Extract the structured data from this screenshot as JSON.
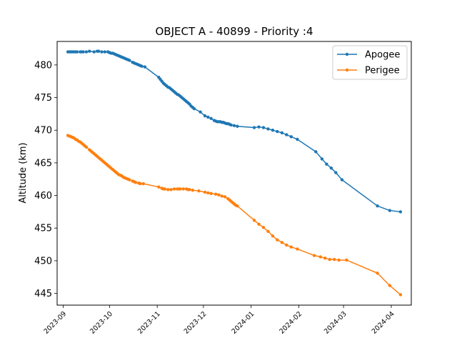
{
  "chart_data": {
    "type": "line",
    "title": "OBJECT A - 40899 - Priority :4",
    "xlabel": "",
    "ylabel": "Altitude (km)",
    "xlim": [
      "2023-08-28",
      "2024-04-14"
    ],
    "ylim": [
      443.2,
      483.6
    ],
    "x_ticks": [
      "2023-09",
      "2023-10",
      "2023-11",
      "2023-12",
      "2024-01",
      "2024-02",
      "2024-03",
      "2024-04"
    ],
    "y_ticks": [
      445,
      450,
      455,
      460,
      465,
      470,
      475,
      480
    ],
    "grid": false,
    "legend_position": "top-right",
    "series": [
      {
        "name": "Apogee",
        "color": "#1f77b4",
        "marker": "circle",
        "points": [
          [
            "2023-09-04",
            482.0
          ],
          [
            "2023-09-05",
            482.0
          ],
          [
            "2023-09-06",
            482.0
          ],
          [
            "2023-09-07",
            482.0
          ],
          [
            "2023-09-08",
            482.0
          ],
          [
            "2023-09-09",
            482.0
          ],
          [
            "2023-09-10",
            482.0
          ],
          [
            "2023-09-12",
            482.0
          ],
          [
            "2023-09-13",
            482.0
          ],
          [
            "2023-09-14",
            482.0
          ],
          [
            "2023-09-16",
            482.0
          ],
          [
            "2023-09-18",
            482.1
          ],
          [
            "2023-09-21",
            482.0
          ],
          [
            "2023-09-23",
            482.1
          ],
          [
            "2023-09-24",
            482.1
          ],
          [
            "2023-09-26",
            482.0
          ],
          [
            "2023-09-28",
            482.0
          ],
          [
            "2023-09-30",
            482.0
          ],
          [
            "2023-10-01",
            481.9
          ],
          [
            "2023-10-02",
            481.8
          ],
          [
            "2023-10-03",
            481.8
          ],
          [
            "2023-10-04",
            481.7
          ],
          [
            "2023-10-05",
            481.6
          ],
          [
            "2023-10-06",
            481.5
          ],
          [
            "2023-10-07",
            481.4
          ],
          [
            "2023-10-08",
            481.3
          ],
          [
            "2023-10-09",
            481.2
          ],
          [
            "2023-10-10",
            481.1
          ],
          [
            "2023-10-11",
            481.0
          ],
          [
            "2023-10-12",
            480.9
          ],
          [
            "2023-10-13",
            480.8
          ],
          [
            "2023-10-14",
            480.7
          ],
          [
            "2023-10-16",
            480.4
          ],
          [
            "2023-10-17",
            480.3
          ],
          [
            "2023-10-18",
            480.2
          ],
          [
            "2023-10-19",
            480.1
          ],
          [
            "2023-10-20",
            480.0
          ],
          [
            "2023-10-21",
            479.9
          ],
          [
            "2023-10-22",
            479.8
          ],
          [
            "2023-10-24",
            479.7
          ],
          [
            "2023-11-02",
            478.1
          ],
          [
            "2023-11-03",
            477.8
          ],
          [
            "2023-11-04",
            477.5
          ],
          [
            "2023-11-05",
            477.2
          ],
          [
            "2023-11-06",
            477.0
          ],
          [
            "2023-11-07",
            476.8
          ],
          [
            "2023-11-08",
            476.6
          ],
          [
            "2023-11-09",
            476.5
          ],
          [
            "2023-11-10",
            476.3
          ],
          [
            "2023-11-11",
            476.1
          ],
          [
            "2023-11-12",
            475.9
          ],
          [
            "2023-11-13",
            475.7
          ],
          [
            "2023-11-14",
            475.5
          ],
          [
            "2023-11-15",
            475.4
          ],
          [
            "2023-11-16",
            475.2
          ],
          [
            "2023-11-17",
            475.0
          ],
          [
            "2023-11-18",
            474.8
          ],
          [
            "2023-11-19",
            474.6
          ],
          [
            "2023-11-20",
            474.4
          ],
          [
            "2023-11-21",
            474.2
          ],
          [
            "2023-11-22",
            474.0
          ],
          [
            "2023-11-23",
            473.7
          ],
          [
            "2023-11-24",
            473.5
          ],
          [
            "2023-11-25",
            473.3
          ],
          [
            "2023-11-29",
            472.8
          ],
          [
            "2023-12-02",
            472.2
          ],
          [
            "2023-12-04",
            472.0
          ],
          [
            "2023-12-06",
            471.8
          ],
          [
            "2023-12-08",
            471.5
          ],
          [
            "2023-12-09",
            471.4
          ],
          [
            "2023-12-10",
            471.3
          ],
          [
            "2023-12-11",
            471.3
          ],
          [
            "2023-12-12",
            471.3
          ],
          [
            "2023-12-13",
            471.2
          ],
          [
            "2023-12-14",
            471.2
          ],
          [
            "2023-12-15",
            471.1
          ],
          [
            "2023-12-16",
            471.0
          ],
          [
            "2023-12-17",
            471.0
          ],
          [
            "2023-12-18",
            470.9
          ],
          [
            "2023-12-19",
            470.8
          ],
          [
            "2023-12-21",
            470.7
          ],
          [
            "2023-12-23",
            470.6
          ],
          [
            "2024-01-03",
            470.4
          ],
          [
            "2024-01-06",
            470.5
          ],
          [
            "2024-01-09",
            470.4
          ],
          [
            "2024-01-12",
            470.2
          ],
          [
            "2024-01-15",
            470.0
          ],
          [
            "2024-01-18",
            469.8
          ],
          [
            "2024-01-21",
            469.6
          ],
          [
            "2024-01-24",
            469.3
          ],
          [
            "2024-01-27",
            469.0
          ],
          [
            "2024-01-31",
            468.6
          ],
          [
            "2024-02-12",
            466.7
          ],
          [
            "2024-02-16",
            465.6
          ],
          [
            "2024-02-19",
            464.8
          ],
          [
            "2024-02-22",
            464.2
          ],
          [
            "2024-02-25",
            463.5
          ],
          [
            "2024-02-29",
            462.4
          ],
          [
            "2024-03-23",
            458.4
          ],
          [
            "2024-03-31",
            457.7
          ],
          [
            "2024-04-07",
            457.5
          ]
        ]
      },
      {
        "name": "Perigee",
        "color": "#ff7f0e",
        "marker": "circle",
        "points": [
          [
            "2023-09-04",
            469.2
          ],
          [
            "2023-09-05",
            469.1
          ],
          [
            "2023-09-06",
            469.0
          ],
          [
            "2023-09-07",
            468.9
          ],
          [
            "2023-09-08",
            468.8
          ],
          [
            "2023-09-09",
            468.6
          ],
          [
            "2023-09-10",
            468.5
          ],
          [
            "2023-09-11",
            468.3
          ],
          [
            "2023-09-12",
            468.2
          ],
          [
            "2023-09-13",
            468.0
          ],
          [
            "2023-09-14",
            467.8
          ],
          [
            "2023-09-15",
            467.6
          ],
          [
            "2023-09-16",
            467.4
          ],
          [
            "2023-09-18",
            467.0
          ],
          [
            "2023-09-19",
            466.8
          ],
          [
            "2023-09-20",
            466.6
          ],
          [
            "2023-09-21",
            466.4
          ],
          [
            "2023-09-22",
            466.2
          ],
          [
            "2023-09-23",
            466.0
          ],
          [
            "2023-09-24",
            465.8
          ],
          [
            "2023-09-25",
            465.6
          ],
          [
            "2023-09-26",
            465.4
          ],
          [
            "2023-09-27",
            465.2
          ],
          [
            "2023-09-28",
            465.0
          ],
          [
            "2023-09-29",
            464.8
          ],
          [
            "2023-09-30",
            464.6
          ],
          [
            "2023-10-01",
            464.4
          ],
          [
            "2023-10-02",
            464.2
          ],
          [
            "2023-10-03",
            464.0
          ],
          [
            "2023-10-04",
            463.8
          ],
          [
            "2023-10-05",
            463.6
          ],
          [
            "2023-10-06",
            463.4
          ],
          [
            "2023-10-07",
            463.2
          ],
          [
            "2023-10-08",
            463.1
          ],
          [
            "2023-10-09",
            463.0
          ],
          [
            "2023-10-10",
            462.8
          ],
          [
            "2023-10-11",
            462.7
          ],
          [
            "2023-10-12",
            462.6
          ],
          [
            "2023-10-13",
            462.5
          ],
          [
            "2023-10-14",
            462.4
          ],
          [
            "2023-10-16",
            462.2
          ],
          [
            "2023-10-17",
            462.1
          ],
          [
            "2023-10-18",
            462.0
          ],
          [
            "2023-10-20",
            461.9
          ],
          [
            "2023-10-21",
            461.8
          ],
          [
            "2023-10-23",
            461.8
          ],
          [
            "2023-11-02",
            461.3
          ],
          [
            "2023-11-04",
            461.1
          ],
          [
            "2023-11-05",
            461.0
          ],
          [
            "2023-11-06",
            461.0
          ],
          [
            "2023-11-08",
            460.9
          ],
          [
            "2023-11-10",
            460.9
          ],
          [
            "2023-11-12",
            461.0
          ],
          [
            "2023-11-14",
            461.0
          ],
          [
            "2023-11-15",
            461.0
          ],
          [
            "2023-11-16",
            461.0
          ],
          [
            "2023-11-18",
            461.0
          ],
          [
            "2023-11-20",
            461.0
          ],
          [
            "2023-11-21",
            460.9
          ],
          [
            "2023-11-22",
            460.9
          ],
          [
            "2023-11-24",
            460.8
          ],
          [
            "2023-11-28",
            460.7
          ],
          [
            "2023-12-02",
            460.5
          ],
          [
            "2023-12-04",
            460.4
          ],
          [
            "2023-12-06",
            460.3
          ],
          [
            "2023-12-09",
            460.2
          ],
          [
            "2023-12-11",
            460.1
          ],
          [
            "2023-12-13",
            459.9
          ],
          [
            "2023-12-15",
            459.8
          ],
          [
            "2023-12-17",
            459.5
          ],
          [
            "2023-12-18",
            459.3
          ],
          [
            "2023-12-19",
            459.1
          ],
          [
            "2023-12-20",
            458.9
          ],
          [
            "2023-12-21",
            458.7
          ],
          [
            "2023-12-22",
            458.5
          ],
          [
            "2023-12-23",
            458.4
          ],
          [
            "2024-01-03",
            456.2
          ],
          [
            "2024-01-06",
            455.6
          ],
          [
            "2024-01-09",
            455.1
          ],
          [
            "2024-01-12",
            454.5
          ],
          [
            "2024-01-15",
            453.8
          ],
          [
            "2024-01-18",
            453.2
          ],
          [
            "2024-01-21",
            452.8
          ],
          [
            "2024-01-24",
            452.4
          ],
          [
            "2024-01-27",
            452.1
          ],
          [
            "2024-01-31",
            451.8
          ],
          [
            "2024-02-11",
            450.8
          ],
          [
            "2024-02-15",
            450.6
          ],
          [
            "2024-02-18",
            450.4
          ],
          [
            "2024-02-21",
            450.2
          ],
          [
            "2024-02-24",
            450.2
          ],
          [
            "2024-02-27",
            450.1
          ],
          [
            "2024-03-03",
            450.1
          ],
          [
            "2024-03-23",
            448.1
          ],
          [
            "2024-03-31",
            446.2
          ],
          [
            "2024-04-07",
            444.8
          ]
        ]
      }
    ]
  }
}
